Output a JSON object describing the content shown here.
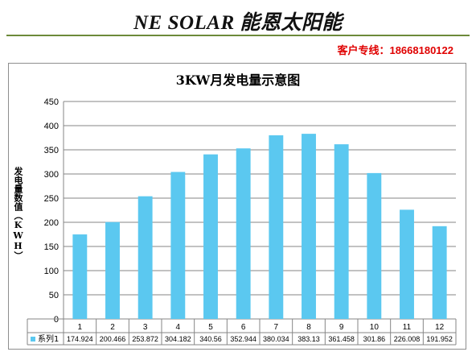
{
  "header": {
    "brand_title": "NE SOLAR  能恩太阳能",
    "hotline": "客户专线：18668180122"
  },
  "colors": {
    "bar": "#5bc8f0",
    "rule": "#6d8a3a",
    "hotline": "#e00000",
    "grid": "#868686"
  },
  "chart_data": {
    "type": "bar",
    "title": "3KW月发电量示意图",
    "ylabel": "发电量数值（KWH）",
    "xlabel": "",
    "ylim": [
      0,
      450
    ],
    "ytick_step": 50,
    "categories": [
      "1",
      "2",
      "3",
      "4",
      "5",
      "6",
      "7",
      "8",
      "9",
      "10",
      "11",
      "12"
    ],
    "series": [
      {
        "name": "系列1",
        "values": [
          174.924,
          200.466,
          253.872,
          304.182,
          340.56,
          352.944,
          380.034,
          383.13,
          361.458,
          301.86,
          226.008,
          191.952
        ],
        "value_labels": [
          "174.924",
          "200.466",
          "253.872",
          "304.182",
          "340.56",
          "352.944",
          "380.034",
          "383.13",
          "361.458",
          "301.86",
          "226.008",
          "191.952"
        ]
      }
    ],
    "grid": true,
    "legend": "data-table"
  }
}
